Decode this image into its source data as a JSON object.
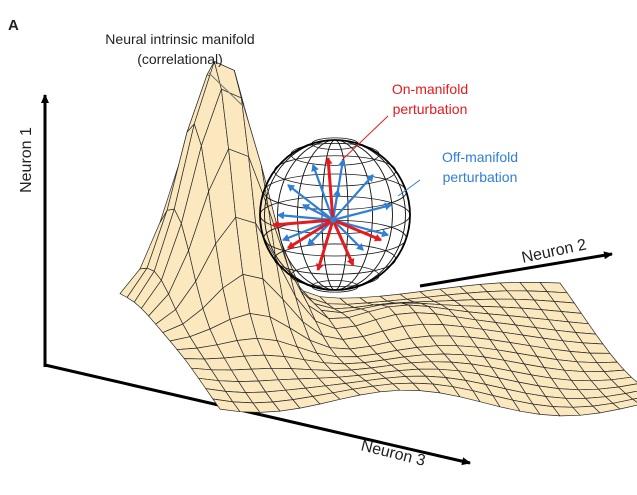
{
  "panel_label": "A",
  "manifold_label": {
    "line1": "Neural intrinsic manifold",
    "line2": "(correlational)"
  },
  "on_manifold_label": {
    "line1": "On-manifold",
    "line2": "perturbation"
  },
  "off_manifold_label": {
    "line1": "Off-manifold",
    "line2": "perturbation"
  },
  "axes": {
    "neuron1": "Neuron 1",
    "neuron2": "Neuron 2",
    "neuron3": "Neuron 3"
  }
}
